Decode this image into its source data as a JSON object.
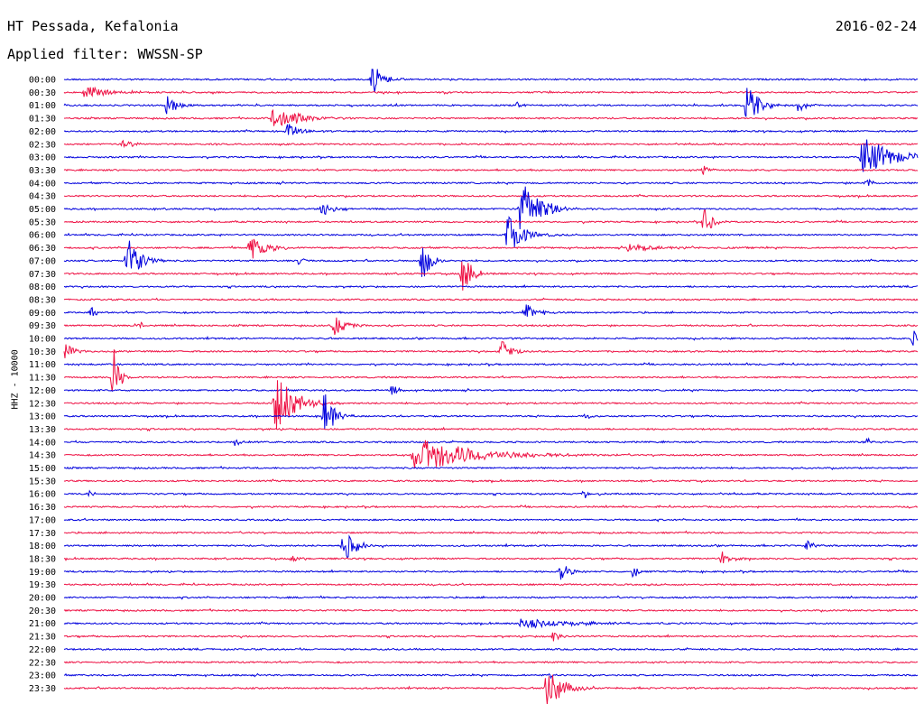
{
  "header": {
    "station": "HT Pessada, Kefalonia",
    "date": "2016-02-24",
    "filter": "Applied filter: WWSSN-SP"
  },
  "channel_label": "HHZ - 10000",
  "colors": {
    "even_hour": "#0000dd",
    "odd_half": "#ee1144"
  },
  "chart_data": {
    "type": "line",
    "rows": [
      "00:00",
      "00:30",
      "01:00",
      "01:30",
      "02:00",
      "02:30",
      "03:00",
      "03:30",
      "04:00",
      "04:30",
      "05:00",
      "05:30",
      "06:00",
      "06:30",
      "07:00",
      "07:30",
      "08:00",
      "08:30",
      "09:00",
      "09:30",
      "10:00",
      "10:30",
      "11:00",
      "11:30",
      "12:00",
      "12:30",
      "13:00",
      "13:30",
      "14:00",
      "14:30",
      "15:00",
      "15:30",
      "16:00",
      "16:30",
      "17:00",
      "17:30",
      "18:00",
      "18:30",
      "19:00",
      "19:30",
      "20:00",
      "20:30",
      "21:00",
      "21:30",
      "22:00",
      "22:30",
      "23:00",
      "23:30"
    ],
    "events": [
      {
        "row": 0,
        "t": 0.361,
        "amp": 1.0,
        "dur": 0.01
      },
      {
        "row": 1,
        "t": 0.025,
        "amp": 0.45,
        "dur": 0.02
      },
      {
        "row": 2,
        "t": 0.121,
        "amp": 0.55,
        "dur": 0.01
      },
      {
        "row": 2,
        "t": 0.531,
        "amp": 0.2,
        "dur": 0.006
      },
      {
        "row": 2,
        "t": 0.8,
        "amp": 1.2,
        "dur": 0.012
      },
      {
        "row": 2,
        "t": 0.86,
        "amp": 0.4,
        "dur": 0.008
      },
      {
        "row": 3,
        "t": 0.245,
        "amp": 0.7,
        "dur": 0.025
      },
      {
        "row": 4,
        "t": 0.262,
        "amp": 0.5,
        "dur": 0.01
      },
      {
        "row": 5,
        "t": 0.07,
        "amp": 0.25,
        "dur": 0.01
      },
      {
        "row": 6,
        "t": 0.935,
        "amp": 1.2,
        "dur": 0.03
      },
      {
        "row": 7,
        "t": 0.75,
        "amp": 0.3,
        "dur": 0.006
      },
      {
        "row": 8,
        "t": 0.94,
        "amp": 0.35,
        "dur": 0.006
      },
      {
        "row": 10,
        "t": 0.303,
        "amp": 0.45,
        "dur": 0.01
      },
      {
        "row": 10,
        "t": 0.535,
        "amp": 1.6,
        "dur": 0.02
      },
      {
        "row": 11,
        "t": 0.75,
        "amp": 0.8,
        "dur": 0.008
      },
      {
        "row": 12,
        "t": 0.52,
        "amp": 1.2,
        "dur": 0.015
      },
      {
        "row": 13,
        "t": 0.218,
        "amp": 0.6,
        "dur": 0.02
      },
      {
        "row": 13,
        "t": 0.66,
        "amp": 0.2,
        "dur": 0.04
      },
      {
        "row": 14,
        "t": 0.074,
        "amp": 1.5,
        "dur": 0.012
      },
      {
        "row": 14,
        "t": 0.275,
        "amp": 0.25,
        "dur": 0.006
      },
      {
        "row": 14,
        "t": 0.42,
        "amp": 1.3,
        "dur": 0.008
      },
      {
        "row": 15,
        "t": 0.467,
        "amp": 1.2,
        "dur": 0.01
      },
      {
        "row": 18,
        "t": 0.033,
        "amp": 0.3,
        "dur": 0.005
      },
      {
        "row": 18,
        "t": 0.54,
        "amp": 0.5,
        "dur": 0.012
      },
      {
        "row": 19,
        "t": 0.085,
        "amp": 0.3,
        "dur": 0.006
      },
      {
        "row": 19,
        "t": 0.316,
        "amp": 0.55,
        "dur": 0.012
      },
      {
        "row": 20,
        "t": 0.995,
        "amp": 0.5,
        "dur": 0.004
      },
      {
        "row": 21,
        "t": 0.0,
        "amp": 0.5,
        "dur": 0.01
      },
      {
        "row": 21,
        "t": 0.513,
        "amp": 0.6,
        "dur": 0.01
      },
      {
        "row": 23,
        "t": 0.058,
        "amp": 1.6,
        "dur": 0.006
      },
      {
        "row": 24,
        "t": 0.383,
        "amp": 0.4,
        "dur": 0.006
      },
      {
        "row": 25,
        "t": 0.248,
        "amp": 1.6,
        "dur": 0.02
      },
      {
        "row": 26,
        "t": 0.305,
        "amp": 1.3,
        "dur": 0.01
      },
      {
        "row": 26,
        "t": 0.612,
        "amp": 0.2,
        "dur": 0.005
      },
      {
        "row": 28,
        "t": 0.2,
        "amp": 0.3,
        "dur": 0.005
      },
      {
        "row": 28,
        "t": 0.94,
        "amp": 0.25,
        "dur": 0.008
      },
      {
        "row": 29,
        "t": 0.41,
        "amp": 1.0,
        "dur": 0.06
      },
      {
        "row": 32,
        "t": 0.03,
        "amp": 0.25,
        "dur": 0.004
      },
      {
        "row": 32,
        "t": 0.61,
        "amp": 0.25,
        "dur": 0.005
      },
      {
        "row": 36,
        "t": 0.328,
        "amp": 0.9,
        "dur": 0.012
      },
      {
        "row": 36,
        "t": 0.87,
        "amp": 0.25,
        "dur": 0.008
      },
      {
        "row": 37,
        "t": 0.265,
        "amp": 0.25,
        "dur": 0.01
      },
      {
        "row": 37,
        "t": 0.77,
        "amp": 0.35,
        "dur": 0.012
      },
      {
        "row": 38,
        "t": 0.582,
        "amp": 0.5,
        "dur": 0.01
      },
      {
        "row": 38,
        "t": 0.667,
        "amp": 0.4,
        "dur": 0.005
      },
      {
        "row": 42,
        "t": 0.535,
        "amp": 0.25,
        "dur": 0.06
      },
      {
        "row": 43,
        "t": 0.573,
        "amp": 0.3,
        "dur": 0.008
      },
      {
        "row": 46,
        "t": 0.57,
        "amp": 0.2,
        "dur": 0.004
      },
      {
        "row": 47,
        "t": 0.566,
        "amp": 1.3,
        "dur": 0.015
      }
    ]
  }
}
